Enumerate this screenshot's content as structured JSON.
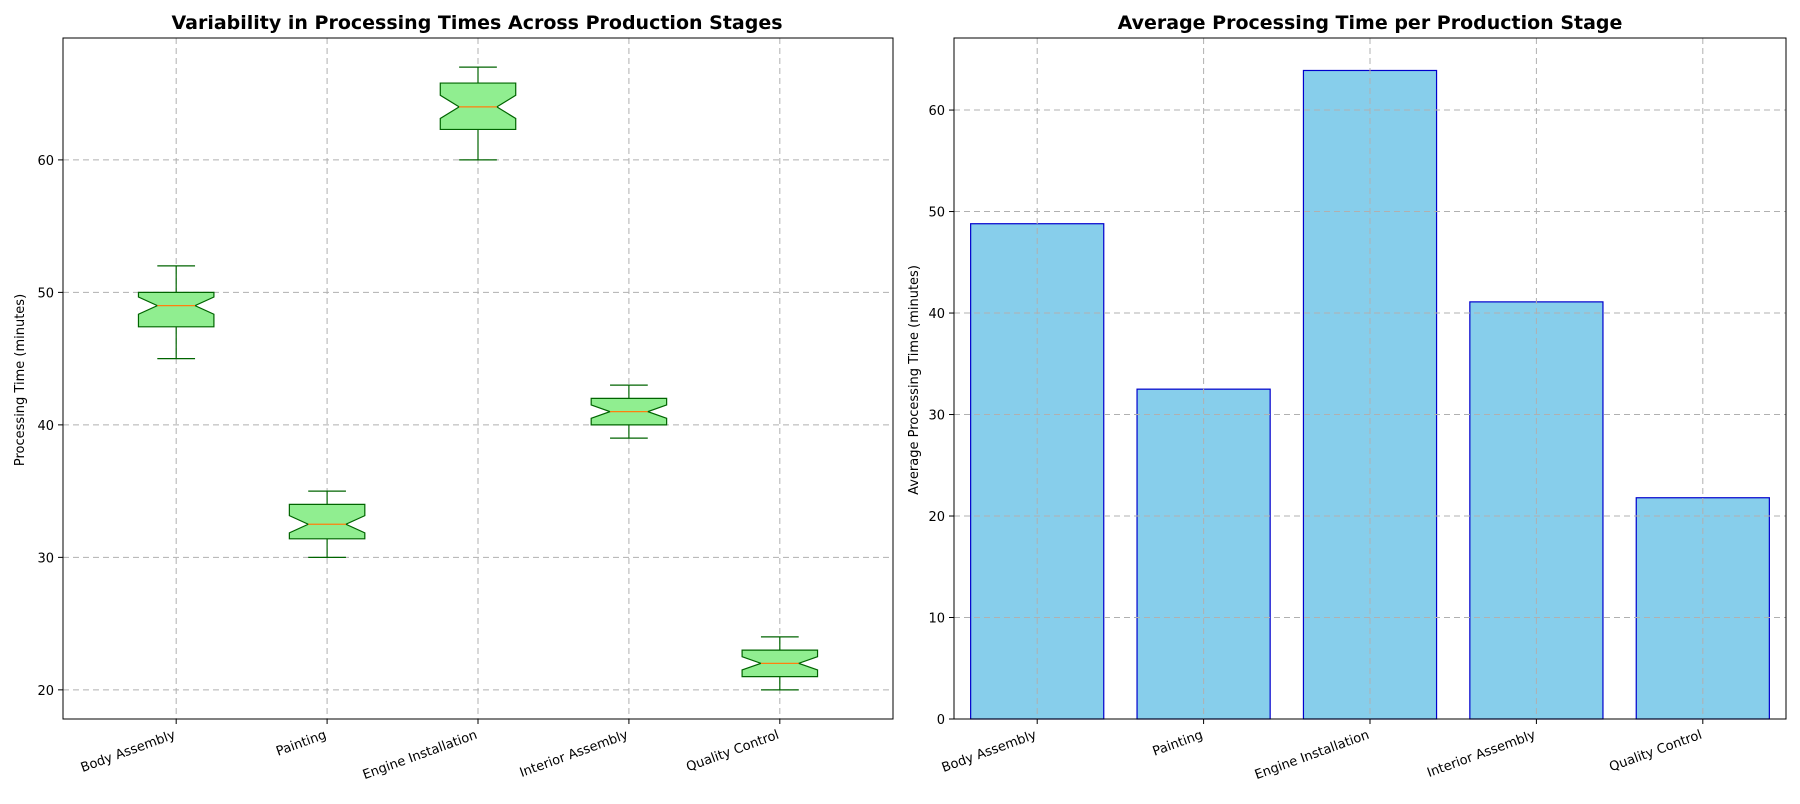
{
  "chart_data": [
    {
      "type": "box",
      "title": "Variability in Processing Times Across Production Stages",
      "xlabel": "",
      "ylabel": "Processing Time (minutes)",
      "categories": [
        "Body Assembly",
        "Painting",
        "Engine Installation",
        "Interior Assembly",
        "Quality Control"
      ],
      "boxes": [
        {
          "min": 45,
          "q1": 47.4,
          "median": 49,
          "q3": 50,
          "max": 52
        },
        {
          "min": 30,
          "q1": 31.4,
          "median": 32.5,
          "q3": 34,
          "max": 35
        },
        {
          "min": 60,
          "q1": 62.3,
          "median": 64,
          "q3": 65.8,
          "max": 67
        },
        {
          "min": 39,
          "q1": 40,
          "median": 41,
          "q3": 42,
          "max": 43
        },
        {
          "min": 20,
          "q1": 21,
          "median": 22,
          "q3": 23,
          "max": 24
        }
      ],
      "ylim": [
        17.8,
        69.2
      ],
      "yticks": [
        20,
        30,
        40,
        50,
        60
      ],
      "grid": true,
      "colors": {
        "box_fill": "#90ee90",
        "box_edge": "#006400",
        "median": "#ff7f0e"
      }
    },
    {
      "type": "bar",
      "title": "Average Processing Time per Production Stage",
      "xlabel": "",
      "ylabel": "Average Processing Time (minutes)",
      "categories": [
        "Body Assembly",
        "Painting",
        "Engine Installation",
        "Interior Assembly",
        "Quality Control"
      ],
      "values": [
        48.8,
        32.5,
        63.9,
        41.1,
        21.8
      ],
      "ylim": [
        0,
        67.1
      ],
      "yticks": [
        0,
        10,
        20,
        30,
        40,
        50,
        60
      ],
      "grid": true,
      "colors": {
        "bar_fill": "#87ceeb",
        "bar_edge": "#0000cd"
      }
    }
  ]
}
